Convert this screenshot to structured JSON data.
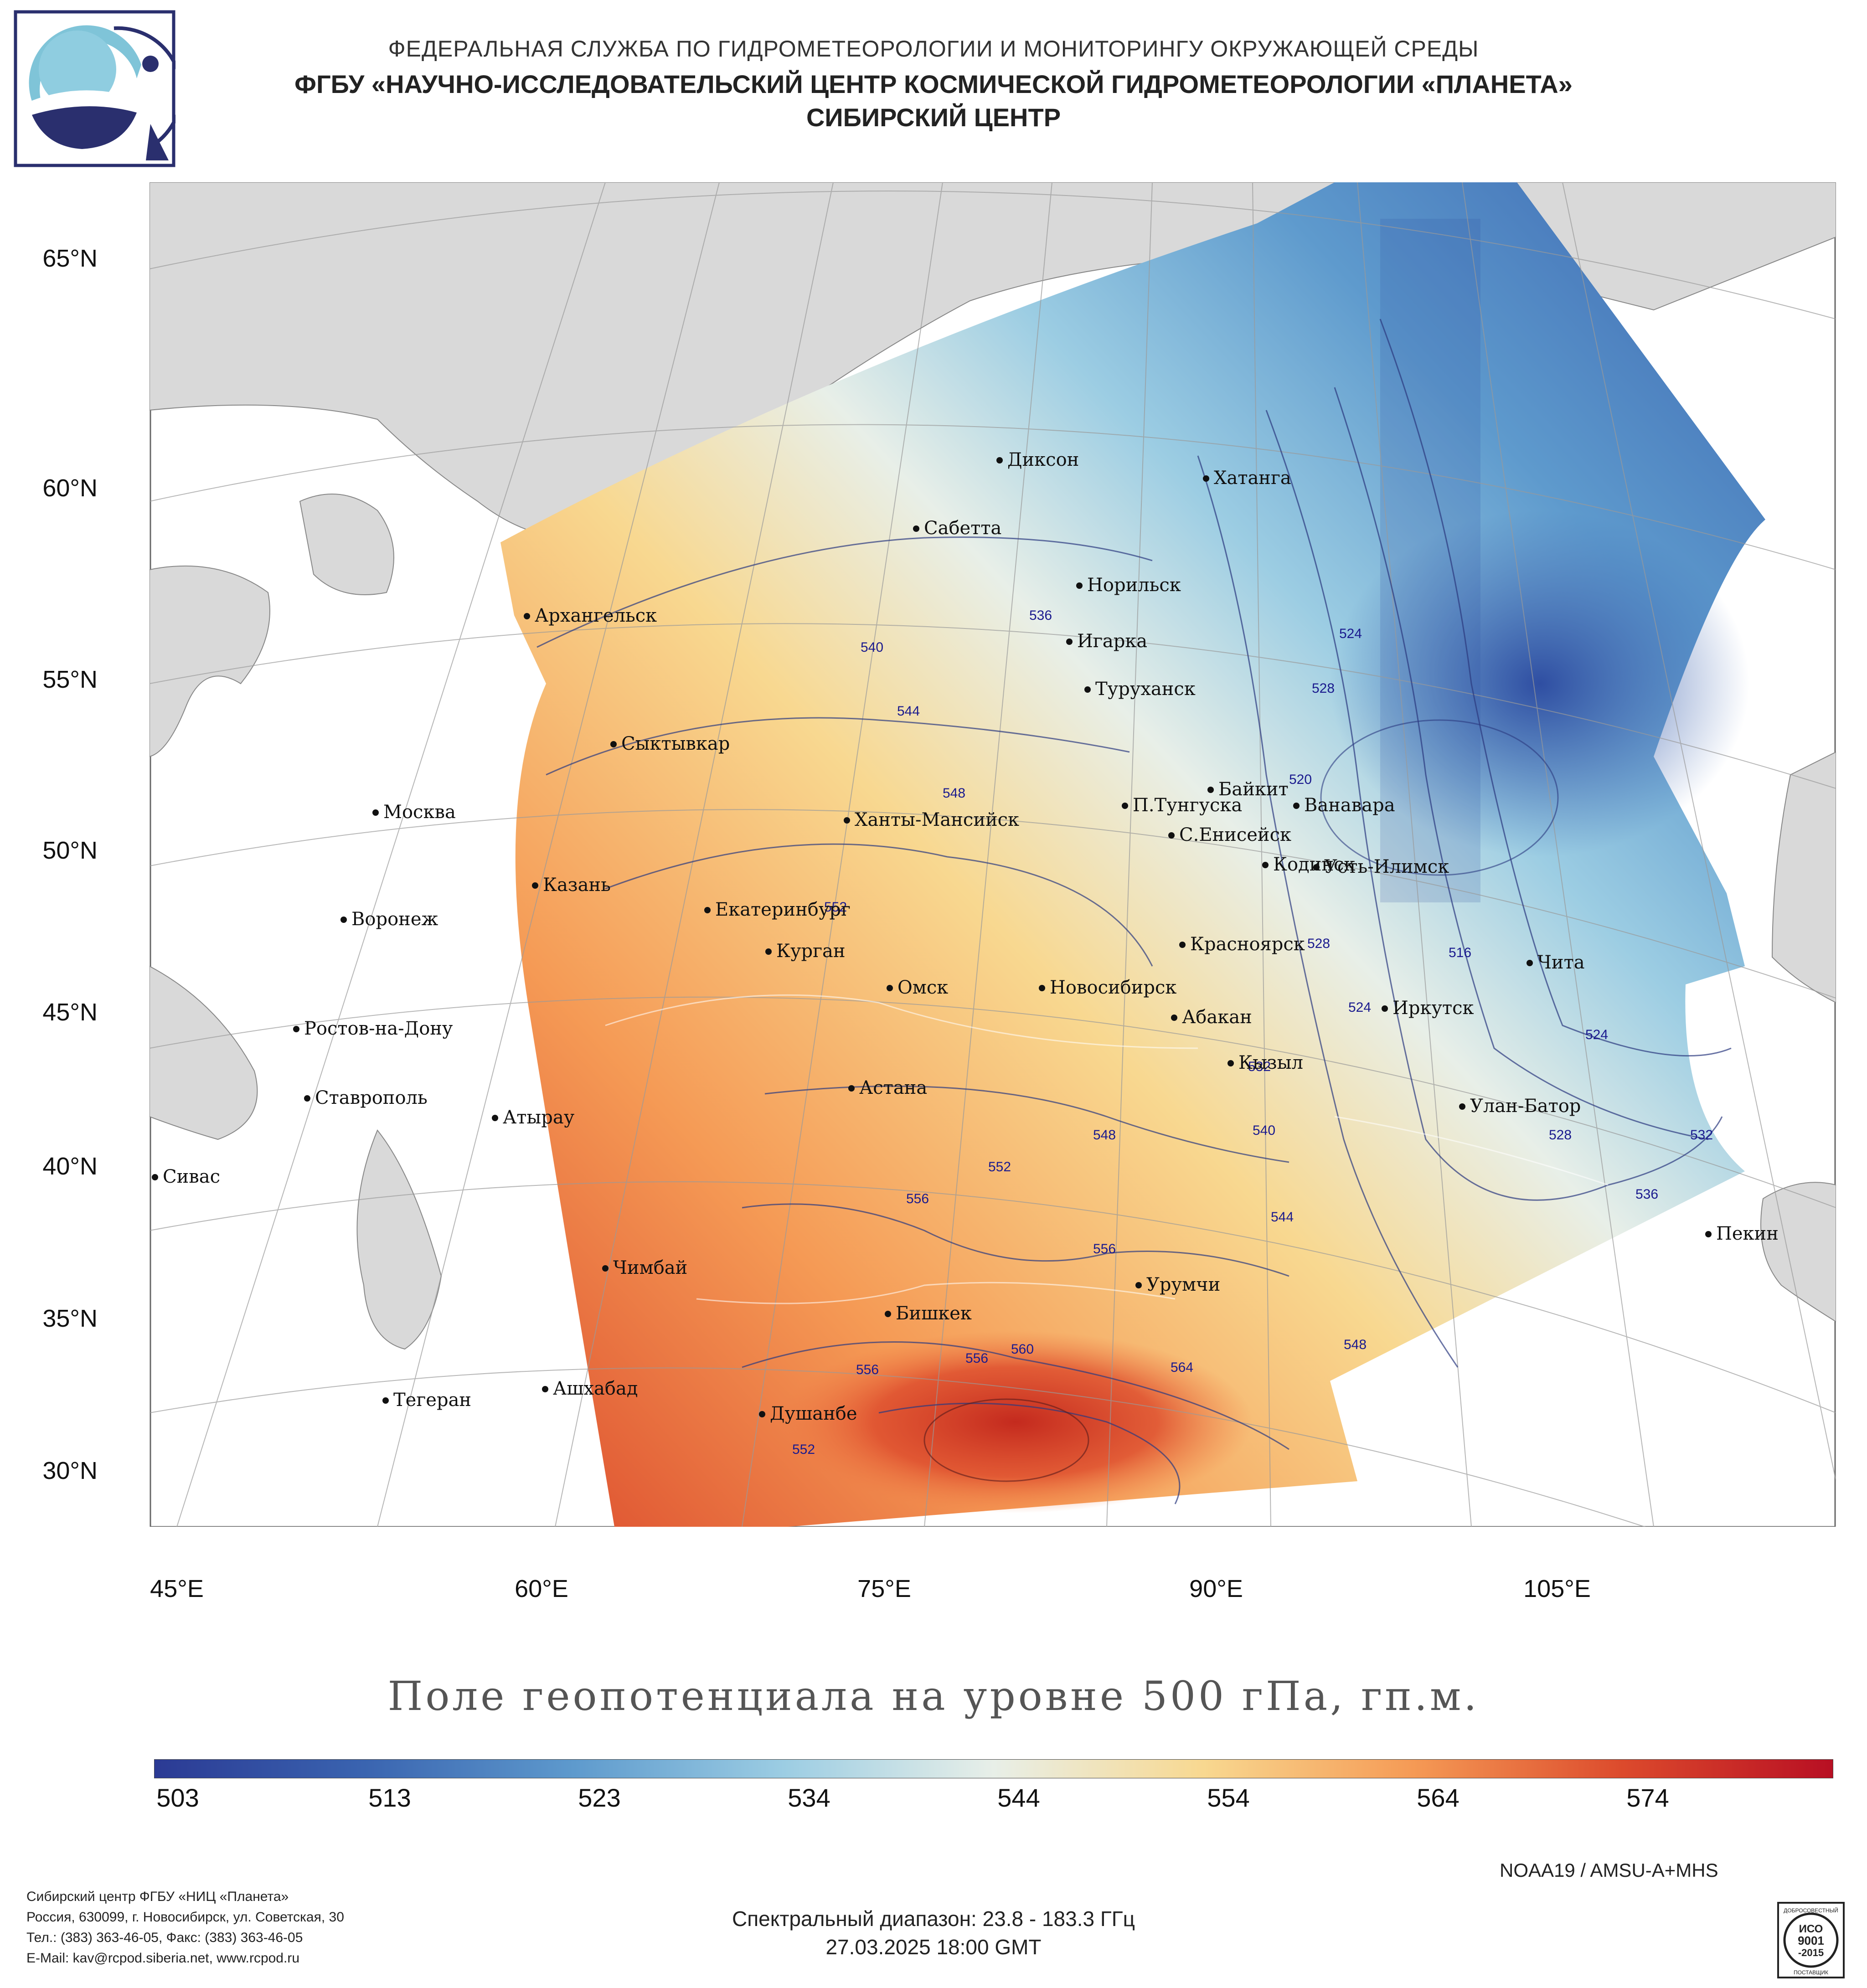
{
  "header": {
    "line1": "ФЕДЕРАЛЬНАЯ СЛУЖБА ПО ГИДРОМЕТЕОРОЛОГИИ И МОНИТОРИНГУ ОКРУЖАЮЩЕЙ СРЕДЫ",
    "line2": "ФГБУ «НАУЧНО-ИССЛЕДОВАТЕЛЬСКИЙ ЦЕНТР КОСМИЧЕСКОЙ ГИДРОМЕТЕОРОЛОГИИ «ПЛАНЕТА»",
    "line3": "СИБИРСКИЙ ЦЕНТР"
  },
  "map": {
    "lat_labels": [
      "65°N",
      "60°N",
      "55°N",
      "50°N",
      "45°N",
      "40°N",
      "35°N",
      "30°N"
    ],
    "lon_labels": [
      "45°E",
      "60°E",
      "75°E",
      "90°E",
      "105°E"
    ],
    "cities": [
      "Диксон",
      "Хатанга",
      "Сабетта",
      "Норильск",
      "Архангельск",
      "Игарка",
      "Туруханск",
      "Сыктывкар",
      "Байкит",
      "П.Тунгуска",
      "Ванавара",
      "Москва",
      "Ханты-Мансийск",
      "С.Енисейск",
      "Кодинск",
      "Усть-Илимск",
      "Казань",
      "Екатеринбург",
      "Воронеж",
      "Курган",
      "Красноярск",
      "Чита",
      "Омск",
      "Новосибирск",
      "Иркутск",
      "Ростов-на-Дону",
      "Абакан",
      "Кызыл",
      "Астана",
      "Ставрополь",
      "Улан-Батор",
      "Атырау",
      "Сивас",
      "Пекин",
      "Чимбай",
      "Урумчи",
      "Бишкек",
      "Ашхабад",
      "Тегеран",
      "Душанбе"
    ],
    "contour_labels": [
      "536",
      "540",
      "544",
      "548",
      "552",
      "524",
      "528",
      "520",
      "516",
      "524",
      "528",
      "524",
      "532",
      "540",
      "528",
      "532",
      "536",
      "548",
      "552",
      "556",
      "556",
      "544",
      "548",
      "556",
      "556",
      "560",
      "564",
      "552"
    ]
  },
  "map_title": "Поле геопотенциала на уровне 500 гПа, гп.м.",
  "colorbar": {
    "ticks": [
      "503",
      "513",
      "523",
      "534",
      "544",
      "554",
      "564",
      "574"
    ],
    "colors": [
      "#2b3a94",
      "#3a64b0",
      "#5e9acd",
      "#9ccde3",
      "#e8efe8",
      "#f8d890",
      "#f59a55",
      "#dc4a2c",
      "#b80f23"
    ]
  },
  "sensor": "NOAA19 / AMSU-A+MHS",
  "footer": {
    "org_line1": "Сибирский центр ФГБУ «НИЦ «Планета»",
    "org_line2": "Россия, 630099, г. Новосибирск, ул. Советская, 30",
    "org_line3": "Тел.: (383) 363-46-05, Факс: (383) 363-46-05",
    "org_line4": "E-Mail: kav@rcpod.siberia.net, www.rcpod.ru",
    "spectral": "Спектральный диапазон: 23.8 - 183.3 ГГц",
    "datetime": "27.03.2025 18:00 GMT",
    "iso_top": "ДОБРОСОВЕСТНЫЙ",
    "iso_code": "ИСО",
    "iso_num": "9001",
    "iso_year": "-2015",
    "iso_bottom": "ПОСТАВЩИК"
  }
}
